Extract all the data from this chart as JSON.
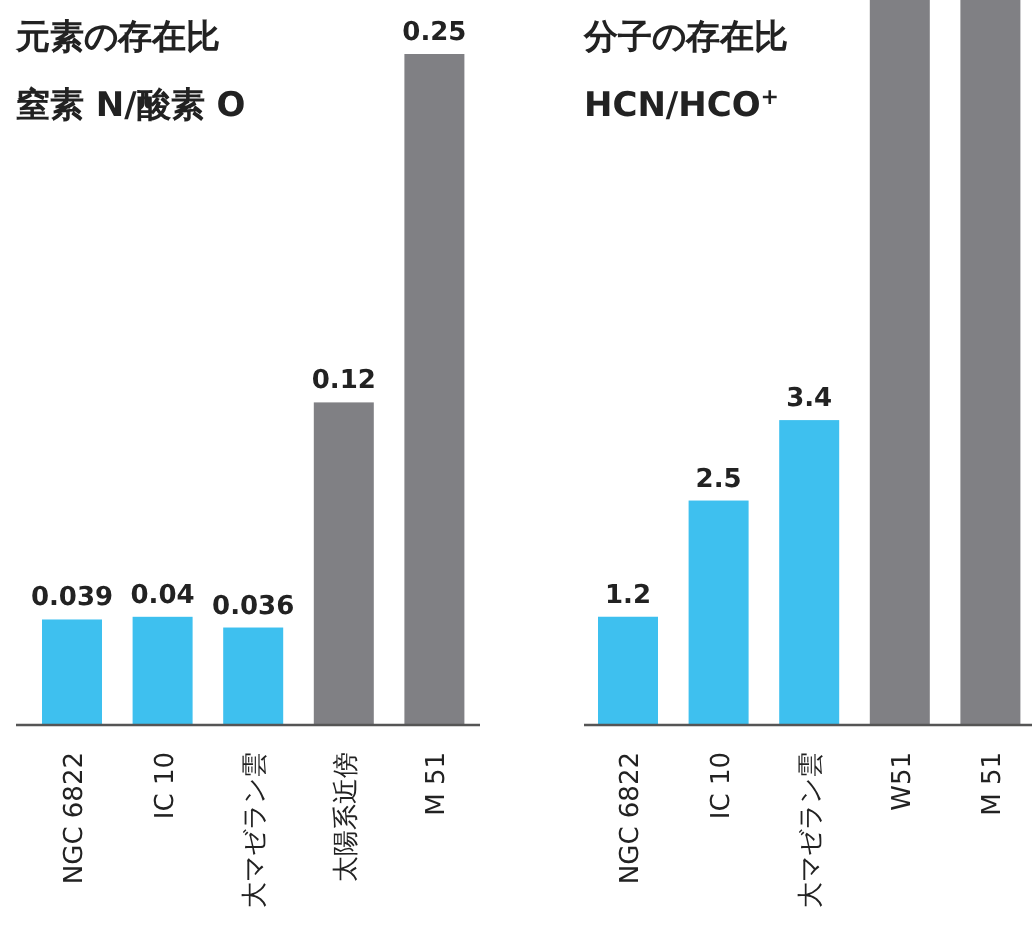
{
  "chart_data": [
    {
      "type": "bar",
      "title": "元素の存在比",
      "subtitle": "窒素 N/酸素 O",
      "categories": [
        "NGC 6822",
        "IC 10",
        "大マゼラン雲",
        "太陽系近傍",
        "M 51"
      ],
      "values": [
        0.039,
        0.04,
        0.036,
        0.12,
        0.25
      ],
      "colors": [
        "#3ec0ef",
        "#3ec0ef",
        "#3ec0ef",
        "#808084",
        "#808084"
      ],
      "data_labels": true
    },
    {
      "type": "bar",
      "title": "分子の存在比",
      "subtitle": "HCN/HCO$^{+}$",
      "categories": [
        "NGC 6822",
        "IC 10",
        "大マゼラン雲",
        "W51",
        "M 51"
      ],
      "values": [
        1.2,
        2.5,
        3.4,
        8.1,
        8.1
      ],
      "value_labels": [
        "1.2",
        "2.5",
        "3.4",
        null,
        null
      ],
      "colors": [
        "#3ec0ef",
        "#3ec0ef",
        "#3ec0ef",
        "#808084",
        "#808084"
      ],
      "ylim": [
        0,
        8.1
      ]
    }
  ]
}
